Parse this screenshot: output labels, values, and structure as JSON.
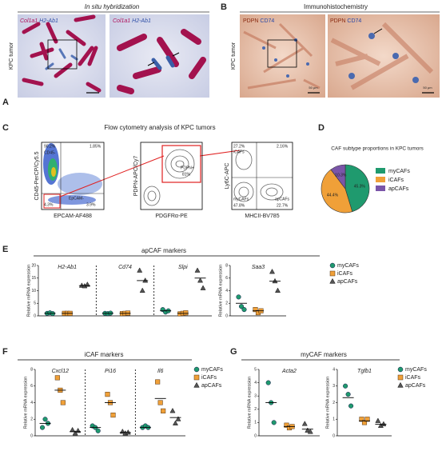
{
  "panels": {
    "A": {
      "letter": "A",
      "title": "In situ hybridization",
      "side_label": "KPC tumor",
      "probe_1": "Col1a1",
      "probe_2": "H2-Ab1"
    },
    "B": {
      "letter": "B",
      "title": "Immunohistochemistry",
      "side_label": "KPC tumor",
      "stain_1": "PDPN",
      "stain_2": "CD74",
      "scale_bar": "50 μm"
    },
    "C": {
      "letter": "C",
      "title": "Flow cytometry analysis of KPC tumors",
      "plots": [
        {
          "x_label": "EPCAM-AF488",
          "y_label": "CD45-PerCP/Cy5.5",
          "gates": [
            "90.2%",
            "1.85%",
            "4.3%",
            "3.9%",
            "CD45-",
            "EpCAM-"
          ]
        },
        {
          "x_label": "PDGFRα-PE",
          "y_label": "PDPN-APC/Cy7",
          "gates": [
            "PDPN+",
            "81%"
          ]
        },
        {
          "x_label": "MHCII-BV785",
          "y_label": "Ly6C-APC",
          "gates": [
            "27.2%",
            "2.16%",
            "47.8%",
            "22.7%",
            "myCAFs",
            "iCAFs",
            "apCAFs"
          ]
        }
      ]
    }
  },
  "chart_data": [
    {
      "type": "pie",
      "letter": "D",
      "title": "CAF subtype proportions in KPC tumors",
      "categories": [
        "myCAFs",
        "iCAFs",
        "apCAFs"
      ],
      "values": [
        45.3,
        44.4,
        10.3
      ],
      "value_labels": [
        "45.3%",
        "44.4%",
        "10.3%"
      ],
      "colors": [
        "#1f9a6e",
        "#f0a038",
        "#7a55a8"
      ]
    },
    {
      "type": "dot",
      "letter": "E",
      "title": "apCAF markers",
      "series": [
        {
          "name": "myCAFs",
          "color": "#1f9a6e",
          "marker": "circle"
        },
        {
          "name": "iCAFs",
          "color": "#f0a038",
          "marker": "square"
        },
        {
          "name": "apCAFs",
          "color": "#555555",
          "marker": "triangle"
        }
      ],
      "axes": [
        {
          "y_label": "Relative mRNA expression",
          "ylim": [
            0,
            20
          ],
          "yticks": [
            0,
            5,
            10,
            15,
            20
          ],
          "dashed_separators": true,
          "genes": [
            {
              "name": "H2-Ab1",
              "values": [
                [
                  1,
                  1.2,
                  0.9
                ],
                [
                  1,
                  1,
                  1
                ],
                [
                  12,
                  11.8,
                  12.4
                ]
              ],
              "means": [
                1,
                1,
                12
              ]
            },
            {
              "name": "Cd74",
              "values": [
                [
                  1,
                  0.9,
                  1.1
                ],
                [
                  0.9,
                  1,
                  1.1
                ],
                [
                  18,
                  10,
                  14
                ]
              ],
              "means": [
                1,
                1,
                14
              ]
            },
            {
              "name": "Slpi",
              "values": [
                [
                  2.5,
                  1.5,
                  2
                ],
                [
                  0.8,
                  1,
                  1.2
                ],
                [
                  18,
                  14,
                  11
                ]
              ],
              "means": [
                2,
                1,
                15
              ]
            }
          ]
        },
        {
          "y_label": "Relative mRNA expression",
          "ylim": [
            0,
            8
          ],
          "yticks": [
            0,
            2,
            4,
            6,
            8
          ],
          "dashed_separators": false,
          "genes": [
            {
              "name": "Saa3",
              "values": [
                [
                  3,
                  1.5,
                  1
                ],
                [
                  1,
                  0.5,
                  0.8
                ],
                [
                  7,
                  5.5,
                  4
                ]
              ],
              "means": [
                2,
                0.8,
                5.5
              ]
            }
          ]
        }
      ]
    },
    {
      "type": "dot",
      "letter": "F",
      "title": "iCAF markers",
      "series": [
        {
          "name": "myCAFs",
          "color": "#1f9a6e",
          "marker": "circle"
        },
        {
          "name": "iCAFs",
          "color": "#f0a038",
          "marker": "square"
        },
        {
          "name": "apCAFs",
          "color": "#555555",
          "marker": "triangle"
        }
      ],
      "axes": [
        {
          "y_label": "Relative mRNA expression",
          "ylim": [
            0,
            8
          ],
          "yticks": [
            0,
            2,
            4,
            6,
            8
          ],
          "dashed_separators": true,
          "genes": [
            {
              "name": "Cxcl12",
              "values": [
                [
                  1,
                  2,
                  1.5
                ],
                [
                  7,
                  5.5,
                  4
                ],
                [
                  0.7,
                  0.3,
                  0.6
                ]
              ],
              "means": [
                1.5,
                5.5,
                0.5
              ]
            },
            {
              "name": "Pi16",
              "values": [
                [
                  1.2,
                  1,
                  0.6
                ],
                [
                  5,
                  4,
                  2.5
                ],
                [
                  0.5,
                  0.3,
                  0.4
                ]
              ],
              "means": [
                1,
                4,
                0.4
              ]
            },
            {
              "name": "Il6",
              "values": [
                [
                  1,
                  1.2,
                  1
                ],
                [
                  6.5,
                  4,
                  3
                ],
                [
                  3,
                  1.5,
                  2
                ]
              ],
              "means": [
                1,
                4.5,
                2.2
              ]
            }
          ]
        }
      ]
    },
    {
      "type": "dot",
      "letter": "G",
      "title": "myCAF markers",
      "series": [
        {
          "name": "myCAFs",
          "color": "#1f9a6e",
          "marker": "circle"
        },
        {
          "name": "iCAFs",
          "color": "#f0a038",
          "marker": "square"
        },
        {
          "name": "apCAFs",
          "color": "#555555",
          "marker": "triangle"
        }
      ],
      "axes": [
        {
          "y_label": "Relative mRNA expression",
          "ylim": [
            0,
            5
          ],
          "yticks": [
            0,
            1,
            2,
            3,
            4,
            5
          ],
          "dashed_separators": false,
          "genes": [
            {
              "name": "Acta2",
              "values": [
                [
                  4,
                  2.5,
                  1
                ],
                [
                  0.8,
                  0.6,
                  0.7
                ],
                [
                  0.9,
                  0.4,
                  0.3
                ]
              ],
              "means": [
                2.5,
                0.7,
                0.5
              ]
            }
          ]
        },
        {
          "y_label": "Relative mRNA expression",
          "ylim": [
            0,
            4
          ],
          "yticks": [
            0,
            1,
            2,
            3,
            4
          ],
          "dashed_separators": false,
          "genes": [
            {
              "name": "Tgfb1",
              "values": [
                [
                  3,
                  2.5,
                  1.8
                ],
                [
                  1,
                  0.8,
                  1
                ],
                [
                  0.9,
                  0.6,
                  0.7
                ]
              ],
              "means": [
                2.3,
                0.9,
                0.7
              ]
            }
          ]
        }
      ]
    }
  ]
}
